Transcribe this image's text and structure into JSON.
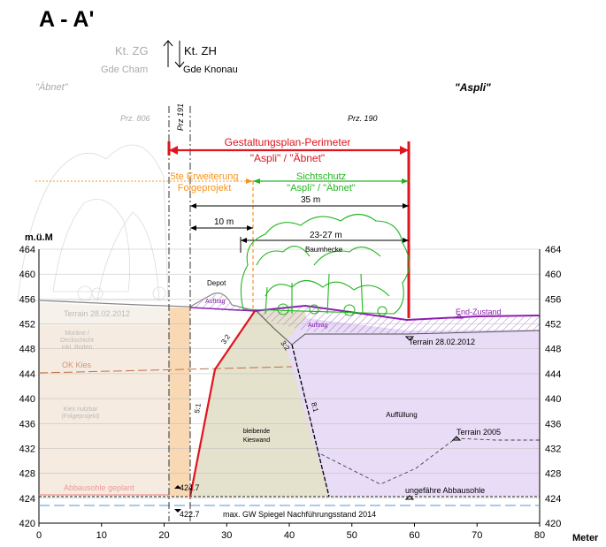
{
  "title": "A - A'",
  "boundary": {
    "left_canton": "Kt. ZG",
    "right_canton": "Kt. ZH",
    "left_municipality": "Gde Cham",
    "right_municipality": "Gde Knonau"
  },
  "areas": {
    "left": "\"Äbnet\"",
    "right": "\"Aspli\""
  },
  "parcels": {
    "p806": "Prz. 806",
    "p191": "Prz 191",
    "p190": "Prz. 190"
  },
  "perimeter": {
    "line1": "Gestaltungsplan-Perimeter",
    "line2": "\"Aspli\" / \"Äbnet\""
  },
  "extension": {
    "line1": "5te Erweiterung",
    "line2": "Folgeprojekt"
  },
  "screen": {
    "line1": "Sichtschutz",
    "line2": "\"Aspli\" / \"Äbnet\""
  },
  "dimensions": {
    "d35": "35 m",
    "d10": "10 m",
    "d2327": "23-27 m"
  },
  "labels": {
    "baumhecke": "Baumhecke",
    "depot": "Depot",
    "auftrag": "Auftrag",
    "end_zustand": "End-Zustand",
    "terrain_left": "Terrain 28.02.2012",
    "terrain_right": "Terrain 28.02.2012",
    "moraene1": "Moräne /",
    "moraene2": "Deckschicht",
    "moraene3": "inkl. Boden",
    "ok_kies": "OK Kies",
    "kies1": "Kies nutzbar",
    "kies2": "(Folgeprojekt)",
    "bleibende1": "bleibende",
    "bleibende2": "Kieswand",
    "auffuellung": "Auffüllung",
    "terrain2005": "Terrain 2005",
    "abbausohle": "ungefähre Abbausohle",
    "abbausohle_geplant": "Abbausohle geplant",
    "h4247": "424.7",
    "h4227": "422.7",
    "gw": "max. GW Spiegel Nachführungsstand 2014",
    "slope32a": "3:2",
    "slope32b": "3:2",
    "slope51": "5:1",
    "slope81": "8:1"
  },
  "axes": {
    "y_unit": "m.ü.M",
    "x_unit": "Meter",
    "y_ticks": [
      "464",
      "460",
      "456",
      "452",
      "448",
      "444",
      "440",
      "436",
      "432",
      "428",
      "424",
      "420"
    ],
    "x_ticks": [
      "0",
      "10",
      "20",
      "30",
      "40",
      "50",
      "60",
      "70",
      "80"
    ]
  },
  "colors": {
    "red": "#e0141e",
    "orange": "#f7941d",
    "green": "#22b51f",
    "purple": "#8a1fb0",
    "fill_lilac": "#e6d9f5",
    "fill_khaki": "#e4e1cc",
    "fill_orange_light": "#fbe6cf"
  }
}
